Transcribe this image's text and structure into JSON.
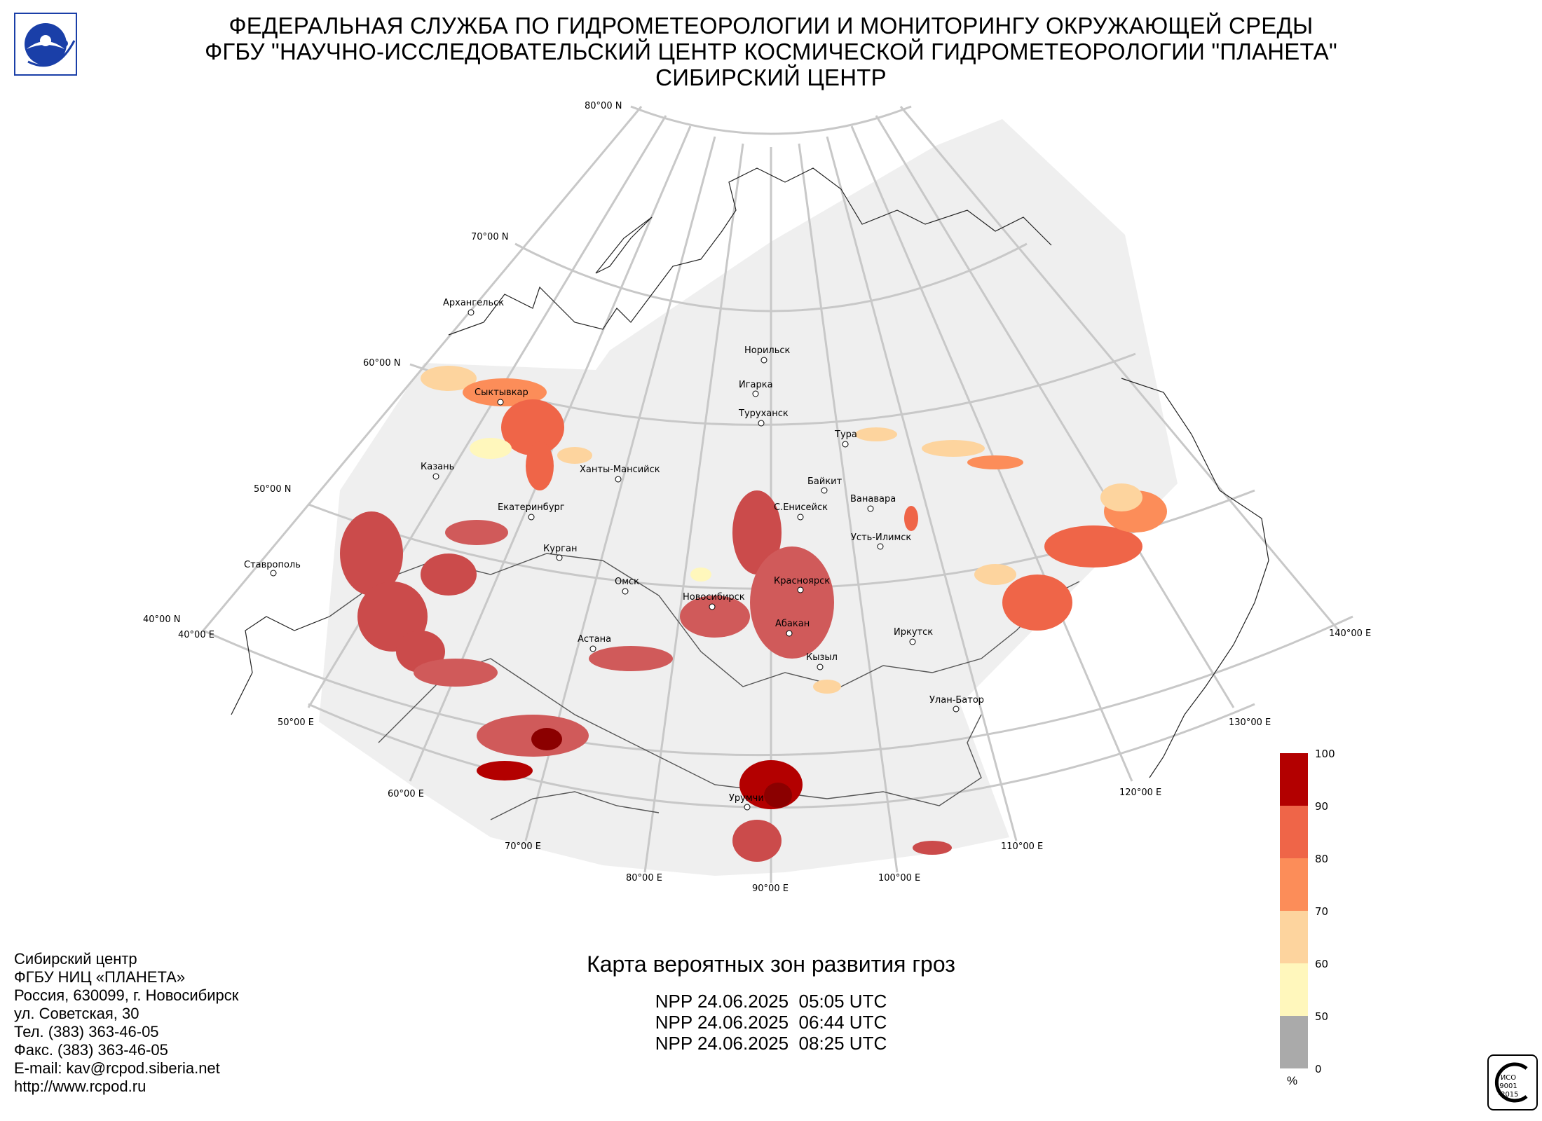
{
  "header": {
    "line1": "ФЕДЕРАЛЬНАЯ СЛУЖБА ПО ГИДРОМЕТЕОРОЛОГИИ И МОНИТОРИНГУ ОКРУЖАЮЩЕЙ СРЕДЫ",
    "line2": "ФГБУ \"НАУЧНО-ИССЛЕДОВАТЕЛЬСКИЙ ЦЕНТР КОСМИЧЕСКОЙ ГИДРОМЕТЕОРОЛОГИИ \"ПЛАНЕТА\"",
    "line3": "СИБИРСКИЙ ЦЕНТР"
  },
  "logo": {
    "icon": "planeta-logo",
    "color": "#1a3fa8"
  },
  "map": {
    "lat_labels": [
      "80°00 N",
      "70°00 N",
      "60°00 N",
      "50°00 N",
      "40°00 N"
    ],
    "lon_labels": [
      "40°00 E",
      "50°00 E",
      "60°00 E",
      "70°00 E",
      "80°00 E",
      "90°00 E",
      "100°00 E",
      "110°00 E",
      "120°00 E",
      "130°00 E",
      "140°00 E"
    ],
    "cities": [
      "Архангельск",
      "Норильск",
      "Игарка",
      "Туруханск",
      "Сыктывкар",
      "Тура",
      "Ханты-Мансийск",
      "Казань",
      "Байкит",
      "Ванавара",
      "С.Енисейск",
      "Екатеринбург",
      "Усть-Илимск",
      "Курган",
      "Ставрополь",
      "Омск",
      "Новосибирск",
      "Красноярск",
      "Абакан",
      "Иркутск",
      "Астана",
      "Кызыл",
      "Улан-Батор",
      "Урумчи"
    ],
    "colors": {
      "land_mask": "#efefef",
      "grid": "#c8c8c8",
      "coast": "#222222"
    }
  },
  "legend": {
    "unit": "%",
    "ticks": [
      "100",
      "90",
      "80",
      "70",
      "60",
      "50",
      "0"
    ],
    "colors": [
      "#b30000",
      "#ef6548",
      "#fc8d59",
      "#fdd49e",
      "#fff7bc",
      "#aaaaaa"
    ]
  },
  "footer": {
    "address": [
      "Сибирский центр",
      "ФГБУ НИЦ «ПЛАНЕТА»",
      "Россия, 630099, г. Новосибирск",
      "ул. Советская, 30",
      "Тел. (383) 363-46-05",
      "Факс. (383) 363-46-05",
      "E-mail: kav@rcpod.siberia.net",
      "http://www.rcpod.ru"
    ],
    "map_title": "Карта вероятных зон развития гроз",
    "passes": [
      "NPP 24.06.2025  05:05 UTC",
      "NPP 24.06.2025  06:44 UTC",
      "NPP 24.06.2025  08:25 UTC"
    ],
    "iso_lines": [
      "ИСО",
      "9001",
      "-2015"
    ]
  }
}
